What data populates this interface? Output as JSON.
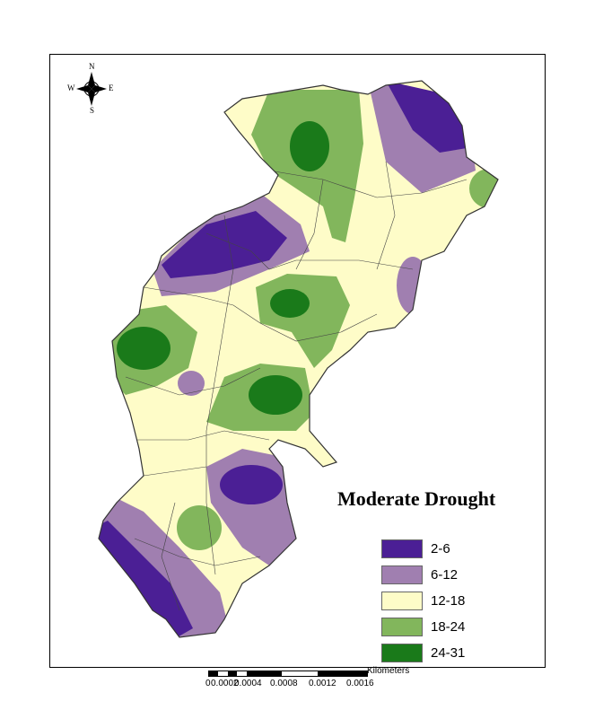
{
  "title": "Moderate Drought",
  "legend": [
    {
      "label": "2-6",
      "color": "#4b1f95"
    },
    {
      "label": "6-12",
      "color": "#a07fb0"
    },
    {
      "label": "12-18",
      "color": "#fefcc8"
    },
    {
      "label": "18-24",
      "color": "#82b65c"
    },
    {
      "label": "24-31",
      "color": "#1a7a1a"
    }
  ],
  "scale_bar": {
    "units": "Kilometers",
    "ticks": [
      "0",
      "0.0002",
      "0.0004",
      "0.0008",
      "0.0012",
      "0.0016"
    ]
  },
  "compass": {
    "n": "N",
    "s": "S",
    "e": "E",
    "w": "W"
  }
}
